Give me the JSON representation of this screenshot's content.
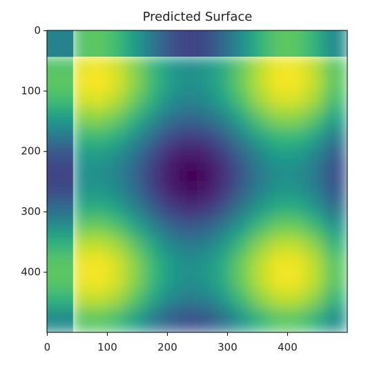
{
  "chart_data": {
    "type": "heatmap",
    "title": "Predicted Surface",
    "colormap": "viridis",
    "xlim": [
      -0.5,
      499.5
    ],
    "ylim": [
      499.5,
      -0.5
    ],
    "xticks": [
      0,
      100,
      200,
      300,
      400
    ],
    "yticks": [
      0,
      100,
      200,
      300,
      400
    ],
    "x_edges": [
      -0.5,
      43,
      70,
      100,
      130,
      160,
      190,
      220,
      250,
      280,
      310,
      340,
      370,
      400,
      430,
      460,
      499.5
    ],
    "y_edges": [
      -0.5,
      43,
      70,
      100,
      130,
      160,
      190,
      220,
      250,
      280,
      310,
      340,
      370,
      400,
      430,
      460,
      499.5
    ],
    "z": [
      [
        0.45,
        0.72,
        0.75,
        0.69,
        0.55,
        0.4,
        0.26,
        0.2,
        0.23,
        0.35,
        0.5,
        0.65,
        0.74,
        0.74,
        0.65,
        0.48
      ],
      [
        0.72,
        0.95,
        0.98,
        0.92,
        0.8,
        0.66,
        0.53,
        0.48,
        0.51,
        0.61,
        0.75,
        0.89,
        0.97,
        0.97,
        0.89,
        0.73
      ],
      [
        0.75,
        0.98,
        1.0,
        0.95,
        0.83,
        0.68,
        0.56,
        0.5,
        0.53,
        0.63,
        0.78,
        0.91,
        0.99,
        0.99,
        0.91,
        0.75
      ],
      [
        0.69,
        0.92,
        0.95,
        0.89,
        0.77,
        0.63,
        0.5,
        0.45,
        0.48,
        0.58,
        0.72,
        0.86,
        0.94,
        0.94,
        0.86,
        0.7
      ],
      [
        0.55,
        0.8,
        0.83,
        0.77,
        0.65,
        0.51,
        0.38,
        0.33,
        0.36,
        0.46,
        0.6,
        0.74,
        0.82,
        0.82,
        0.74,
        0.58
      ],
      [
        0.4,
        0.66,
        0.68,
        0.63,
        0.51,
        0.36,
        0.24,
        0.18,
        0.21,
        0.31,
        0.46,
        0.59,
        0.67,
        0.67,
        0.59,
        0.43
      ],
      [
        0.26,
        0.53,
        0.56,
        0.5,
        0.38,
        0.24,
        0.11,
        0.06,
        0.09,
        0.19,
        0.33,
        0.47,
        0.55,
        0.55,
        0.47,
        0.31
      ],
      [
        0.2,
        0.48,
        0.5,
        0.45,
        0.33,
        0.18,
        0.06,
        0.0,
        0.03,
        0.13,
        0.28,
        0.41,
        0.49,
        0.49,
        0.41,
        0.25
      ],
      [
        0.23,
        0.51,
        0.53,
        0.48,
        0.36,
        0.21,
        0.09,
        0.03,
        0.06,
        0.16,
        0.31,
        0.44,
        0.52,
        0.52,
        0.44,
        0.28
      ],
      [
        0.35,
        0.61,
        0.63,
        0.58,
        0.46,
        0.31,
        0.19,
        0.13,
        0.16,
        0.26,
        0.41,
        0.54,
        0.62,
        0.62,
        0.54,
        0.38
      ],
      [
        0.5,
        0.75,
        0.78,
        0.72,
        0.6,
        0.46,
        0.33,
        0.28,
        0.31,
        0.41,
        0.55,
        0.69,
        0.77,
        0.77,
        0.69,
        0.53
      ],
      [
        0.65,
        0.89,
        0.91,
        0.86,
        0.74,
        0.59,
        0.47,
        0.41,
        0.44,
        0.54,
        0.69,
        0.82,
        0.9,
        0.9,
        0.82,
        0.66
      ],
      [
        0.74,
        0.97,
        0.99,
        0.94,
        0.82,
        0.67,
        0.55,
        0.49,
        0.52,
        0.62,
        0.77,
        0.9,
        0.98,
        0.98,
        0.9,
        0.74
      ],
      [
        0.74,
        0.97,
        0.99,
        0.94,
        0.82,
        0.67,
        0.55,
        0.49,
        0.52,
        0.62,
        0.77,
        0.9,
        0.98,
        0.98,
        0.9,
        0.74
      ],
      [
        0.65,
        0.89,
        0.91,
        0.86,
        0.74,
        0.59,
        0.47,
        0.41,
        0.44,
        0.54,
        0.69,
        0.82,
        0.9,
        0.9,
        0.82,
        0.66
      ],
      [
        0.48,
        0.73,
        0.75,
        0.7,
        0.58,
        0.43,
        0.31,
        0.25,
        0.28,
        0.38,
        0.53,
        0.66,
        0.74,
        0.74,
        0.66,
        0.5
      ]
    ]
  }
}
